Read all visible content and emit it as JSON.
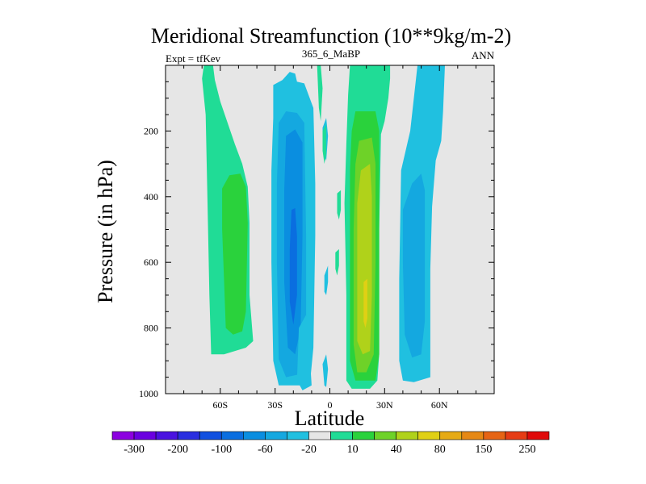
{
  "chart_data": {
    "type": "heatmap",
    "title": "Meridional Streamfunction (10**9kg/m-2)",
    "subtitle_left": "Expt = tfKev",
    "subtitle_center": "365_6_MaBP",
    "subtitle_right": "ANN",
    "xlabel": "Latitude",
    "ylabel": "Pressure (in hPa)",
    "xlim": [
      -90,
      90
    ],
    "ylim": [
      1000,
      0
    ],
    "x_ticks": [
      {
        "value": -60,
        "label": "60S"
      },
      {
        "value": -30,
        "label": "30S"
      },
      {
        "value": 0,
        "label": "0"
      },
      {
        "value": 30,
        "label": "30N"
      },
      {
        "value": 60,
        "label": "60N"
      }
    ],
    "y_ticks": [
      {
        "value": 200,
        "label": "200"
      },
      {
        "value": 400,
        "label": "400"
      },
      {
        "value": 600,
        "label": "600"
      },
      {
        "value": 800,
        "label": "800"
      },
      {
        "value": 1000,
        "label": "1000"
      }
    ],
    "background_color": "#e6e6e6",
    "colorbar": {
      "labels": [
        "-300",
        "-200",
        "-100",
        "-60",
        "-20",
        "10",
        "40",
        "80",
        "150",
        "250"
      ],
      "colors": [
        "#8c00e0",
        "#6a00e0",
        "#4a12e0",
        "#2a2ee0",
        "#1050e0",
        "#0a6ee0",
        "#0a8ee0",
        "#14a8e0",
        "#20c0e0",
        "#e6e6e6",
        "#20dc96",
        "#2ad23c",
        "#6ed228",
        "#b0d21a",
        "#e0d014",
        "#e6aa14",
        "#e68814",
        "#e66414",
        "#e63c14",
        "#e00a0a"
      ]
    },
    "regions": [
      {
        "color": "#20dc96",
        "points": [
          [
            -69,
            0
          ],
          [
            -64,
            0
          ],
          [
            -63,
            45
          ],
          [
            -60,
            110
          ],
          [
            -52,
            240
          ],
          [
            -48,
            300
          ],
          [
            -45,
            370
          ],
          [
            -44,
            480
          ],
          [
            -44,
            700
          ],
          [
            -42,
            840
          ],
          [
            -46,
            860
          ],
          [
            -58,
            880
          ],
          [
            -65,
            880
          ],
          [
            -66,
            700
          ],
          [
            -67,
            420
          ],
          [
            -68,
            150
          ],
          [
            -70,
            40
          ]
        ]
      },
      {
        "color": "#2ad23c",
        "points": [
          [
            -59,
            375
          ],
          [
            -55,
            335
          ],
          [
            -49,
            330
          ],
          [
            -46,
            370
          ],
          [
            -45,
            480
          ],
          [
            -46,
            750
          ],
          [
            -48,
            810
          ],
          [
            -53,
            820
          ],
          [
            -57,
            800
          ],
          [
            -58,
            650
          ],
          [
            -59,
            500
          ]
        ]
      },
      {
        "color": "#20c0e0",
        "points": [
          [
            -31,
            60
          ],
          [
            -26,
            45
          ],
          [
            -22,
            20
          ],
          [
            -19,
            25
          ],
          [
            -18,
            50
          ],
          [
            -14,
            55
          ],
          [
            -9,
            130
          ],
          [
            -8,
            360
          ],
          [
            -8,
            520
          ],
          [
            -9,
            860
          ],
          [
            -11,
            975
          ],
          [
            -28,
            975
          ],
          [
            -31,
            900
          ],
          [
            -32,
            600
          ],
          [
            -32,
            320
          ],
          [
            -31,
            160
          ]
        ]
      },
      {
        "color": "#14a8e0",
        "points": [
          [
            -28,
            175
          ],
          [
            -24,
            140
          ],
          [
            -18,
            145
          ],
          [
            -14,
            175
          ],
          [
            -13,
            520
          ],
          [
            -13,
            830
          ],
          [
            -16,
            940
          ],
          [
            -24,
            950
          ],
          [
            -28,
            895
          ],
          [
            -29,
            600
          ],
          [
            -29,
            360
          ]
        ]
      },
      {
        "color": "#0a8ee0",
        "points": [
          [
            -24,
            215
          ],
          [
            -19,
            195
          ],
          [
            -15,
            235
          ],
          [
            -15,
            520
          ],
          [
            -16,
            800
          ],
          [
            -19,
            880
          ],
          [
            -23,
            860
          ],
          [
            -25,
            660
          ],
          [
            -25,
            380
          ]
        ]
      },
      {
        "color": "#0a6ee0",
        "points": [
          [
            -21,
            440
          ],
          [
            -19,
            435
          ],
          [
            -18,
            520
          ],
          [
            -18,
            700
          ],
          [
            -20,
            790
          ],
          [
            -22,
            720
          ],
          [
            -22,
            560
          ]
        ]
      },
      {
        "color": "#20c0e0",
        "points": [
          [
            -17,
            800
          ],
          [
            -13,
            760
          ],
          [
            -11,
            880
          ],
          [
            -10,
            975
          ],
          [
            -15,
            990
          ],
          [
            -18,
            960
          ]
        ]
      },
      {
        "color": "#20c0e0",
        "points": [
          [
            -4,
            190
          ],
          [
            -2,
            160
          ],
          [
            -1,
            215
          ],
          [
            -2,
            290
          ],
          [
            -4,
            260
          ]
        ]
      },
      {
        "color": "#20c0e0",
        "points": [
          [
            -3,
            640
          ],
          [
            -1,
            610
          ],
          [
            -1,
            660
          ],
          [
            -2,
            700
          ],
          [
            -3,
            690
          ]
        ]
      },
      {
        "color": "#20c0e0",
        "points": [
          [
            -4,
            910
          ],
          [
            -2,
            880
          ],
          [
            -1,
            925
          ],
          [
            -2,
            980
          ],
          [
            -3,
            975
          ]
        ]
      },
      {
        "color": "#20dc96",
        "points": [
          [
            -7,
            0
          ],
          [
            -5,
            0
          ],
          [
            -4,
            70
          ],
          [
            -5,
            170
          ],
          [
            -6,
            130
          ]
        ]
      },
      {
        "color": "#20dc96",
        "points": [
          [
            -4,
            200
          ],
          [
            -2,
            180
          ],
          [
            -2,
            270
          ],
          [
            -3,
            300
          ],
          [
            -4,
            260
          ]
        ]
      },
      {
        "color": "#20dc96",
        "points": [
          [
            4,
            390
          ],
          [
            6,
            380
          ],
          [
            6,
            440
          ],
          [
            5,
            470
          ],
          [
            4,
            450
          ]
        ]
      },
      {
        "color": "#20dc96",
        "points": [
          [
            3,
            570
          ],
          [
            5,
            560
          ],
          [
            5,
            610
          ],
          [
            4,
            640
          ],
          [
            3,
            620
          ]
        ]
      },
      {
        "color": "#20dc96",
        "points": [
          [
            11,
            0
          ],
          [
            33,
            0
          ],
          [
            33,
            40
          ],
          [
            32,
            100
          ],
          [
            30,
            170
          ],
          [
            28,
            210
          ],
          [
            27,
            500
          ],
          [
            27,
            880
          ],
          [
            26,
            960
          ],
          [
            22,
            985
          ],
          [
            12,
            985
          ],
          [
            9,
            960
          ],
          [
            9,
            700
          ],
          [
            8,
            420
          ],
          [
            9,
            240
          ],
          [
            10,
            90
          ]
        ]
      },
      {
        "color": "#2ad23c",
        "points": [
          [
            14,
            140
          ],
          [
            25,
            140
          ],
          [
            27,
            200
          ],
          [
            27,
            500
          ],
          [
            27,
            880
          ],
          [
            25,
            960
          ],
          [
            14,
            960
          ],
          [
            11,
            900
          ],
          [
            11,
            600
          ],
          [
            11,
            320
          ],
          [
            12,
            200
          ]
        ]
      },
      {
        "color": "#6ed228",
        "points": [
          [
            16,
            230
          ],
          [
            23,
            220
          ],
          [
            25,
            300
          ],
          [
            25,
            600
          ],
          [
            24,
            880
          ],
          [
            20,
            935
          ],
          [
            15,
            935
          ],
          [
            13,
            850
          ],
          [
            13,
            500
          ],
          [
            14,
            300
          ]
        ]
      },
      {
        "color": "#b0d21a",
        "points": [
          [
            17,
            320
          ],
          [
            22,
            300
          ],
          [
            23,
            400
          ],
          [
            23,
            700
          ],
          [
            22,
            870
          ],
          [
            18,
            880
          ],
          [
            15,
            840
          ],
          [
            15,
            600
          ],
          [
            15,
            420
          ]
        ]
      },
      {
        "color": "#e0d014",
        "points": [
          [
            18.5,
            660
          ],
          [
            20.5,
            650
          ],
          [
            20.5,
            770
          ],
          [
            19.5,
            800
          ],
          [
            18.5,
            780
          ]
        ]
      },
      {
        "color": "#20c0e0",
        "points": [
          [
            48,
            0
          ],
          [
            63,
            0
          ],
          [
            62,
            140
          ],
          [
            61,
            230
          ],
          [
            58,
            290
          ],
          [
            56,
            430
          ],
          [
            55,
            620
          ],
          [
            55,
            840
          ],
          [
            55,
            950
          ],
          [
            46,
            965
          ],
          [
            40,
            960
          ],
          [
            38,
            900
          ],
          [
            38,
            650
          ],
          [
            39,
            320
          ],
          [
            44,
            200
          ],
          [
            46,
            100
          ]
        ]
      },
      {
        "color": "#14a8e0",
        "points": [
          [
            40,
            440
          ],
          [
            45,
            360
          ],
          [
            50,
            330
          ],
          [
            52,
            380
          ],
          [
            52,
            520
          ],
          [
            52,
            780
          ],
          [
            50,
            880
          ],
          [
            45,
            890
          ],
          [
            41,
            820
          ],
          [
            40,
            600
          ]
        ]
      }
    ]
  }
}
